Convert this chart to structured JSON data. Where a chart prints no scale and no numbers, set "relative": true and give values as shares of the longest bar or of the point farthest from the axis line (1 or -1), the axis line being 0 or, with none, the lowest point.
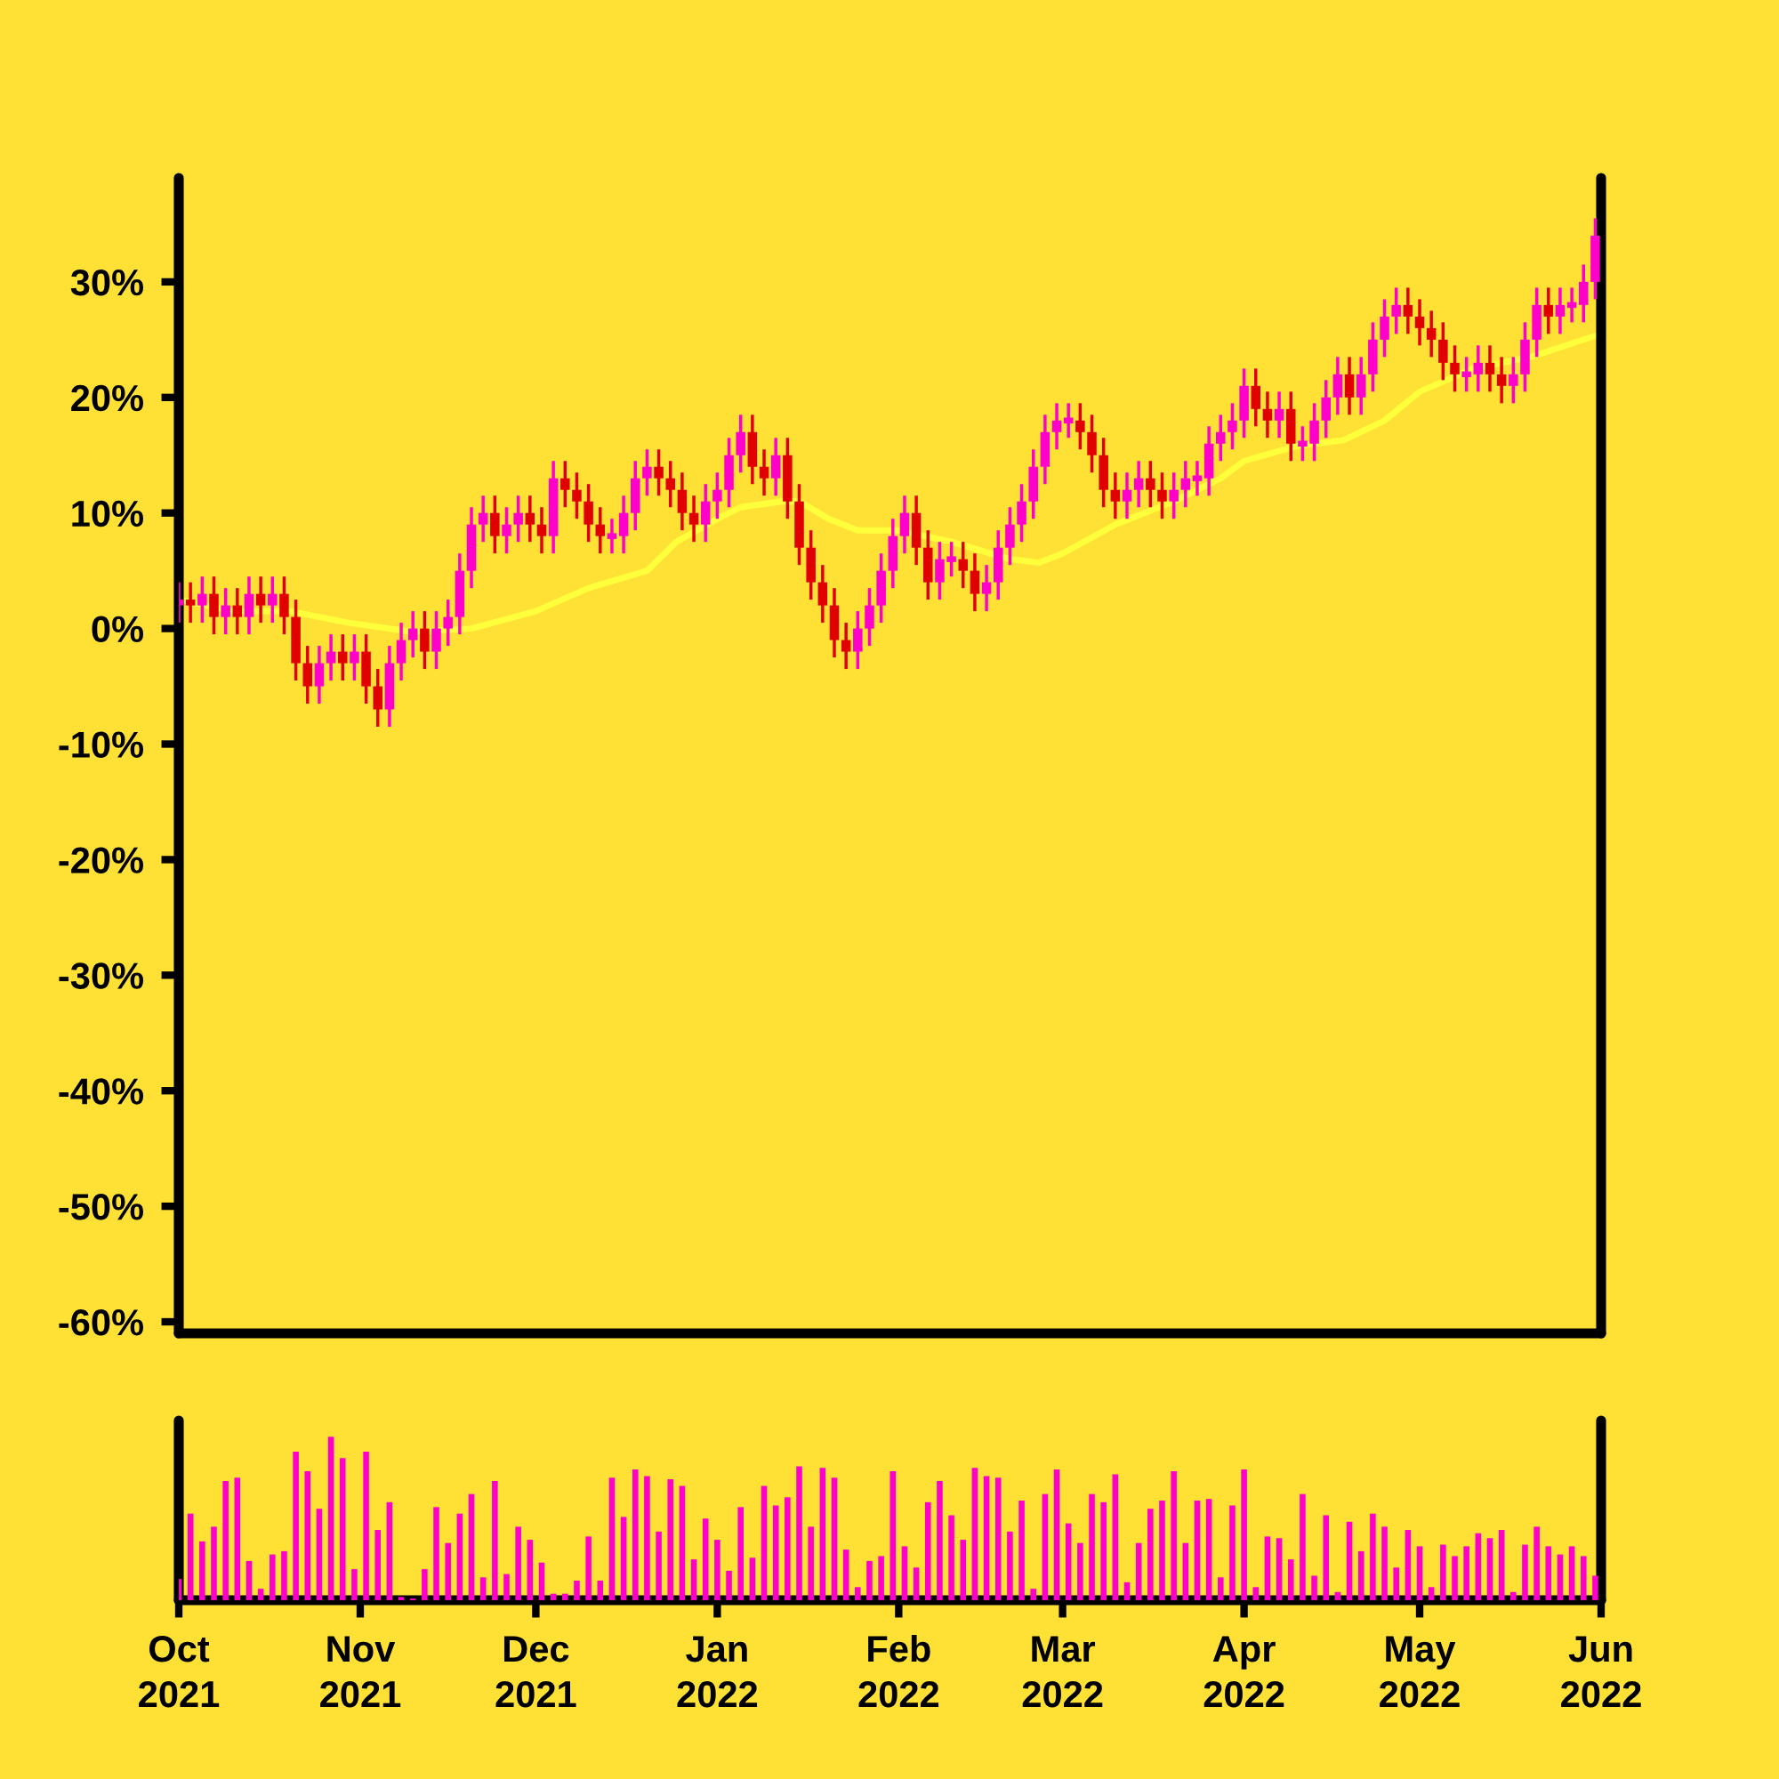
{
  "chart_data": [
    {
      "type": "candlestick",
      "xlim": [
        "2021-10-01",
        "2022-06-01"
      ],
      "ylim": [
        -61,
        39
      ],
      "yticks": [
        {
          "value": 30,
          "label": "30%"
        },
        {
          "value": 20,
          "label": "20%"
        },
        {
          "value": 10,
          "label": "10%"
        },
        {
          "value": 0,
          "label": "0%"
        },
        {
          "value": -10,
          "label": "-10%"
        },
        {
          "value": -20,
          "label": "-20%"
        },
        {
          "value": -30,
          "label": "-30%"
        },
        {
          "value": -40,
          "label": "-40%"
        },
        {
          "value": -50,
          "label": "-50%"
        },
        {
          "value": -60,
          "label": "-60%"
        }
      ],
      "tick_labels": "y",
      "grid": false,
      "x": [
        "2021-10-01",
        "2021-10-03",
        "2021-10-05",
        "2021-10-07",
        "2021-10-09",
        "2021-10-11",
        "2021-10-13",
        "2021-10-15",
        "2021-10-17",
        "2021-10-19",
        "2021-10-21",
        "2021-10-23",
        "2021-10-25",
        "2021-10-27",
        "2021-10-29",
        "2021-10-31",
        "2021-11-02",
        "2021-11-04",
        "2021-11-06",
        "2021-11-08",
        "2021-11-10",
        "2021-11-12",
        "2021-11-14",
        "2021-11-16",
        "2021-11-18",
        "2021-11-20",
        "2021-11-22",
        "2021-11-24",
        "2021-11-26",
        "2021-11-28",
        "2021-11-30",
        "2021-12-02",
        "2021-12-04",
        "2021-12-06",
        "2021-12-08",
        "2021-12-10",
        "2021-12-12",
        "2021-12-14",
        "2021-12-16",
        "2021-12-18",
        "2021-12-20",
        "2021-12-22",
        "2021-12-24",
        "2021-12-26",
        "2021-12-28",
        "2021-12-30",
        "2022-01-01",
        "2022-01-03",
        "2022-01-05",
        "2022-01-07",
        "2022-01-09",
        "2022-01-11",
        "2022-01-13",
        "2022-01-15",
        "2022-01-17",
        "2022-01-19",
        "2022-01-21",
        "2022-01-23",
        "2022-01-25",
        "2022-01-27",
        "2022-01-29",
        "2022-01-31",
        "2022-02-02",
        "2022-02-04",
        "2022-02-06",
        "2022-02-08",
        "2022-02-10",
        "2022-02-12",
        "2022-02-14",
        "2022-02-16",
        "2022-02-18",
        "2022-02-20",
        "2022-02-22",
        "2022-02-24",
        "2022-02-26",
        "2022-02-28",
        "2022-03-02",
        "2022-03-04",
        "2022-03-06",
        "2022-03-08",
        "2022-03-10",
        "2022-03-12",
        "2022-03-14",
        "2022-03-16",
        "2022-03-18",
        "2022-03-20",
        "2022-03-22",
        "2022-03-24",
        "2022-03-26",
        "2022-03-28",
        "2022-03-30",
        "2022-04-01",
        "2022-04-03",
        "2022-04-05",
        "2022-04-07",
        "2022-04-09",
        "2022-04-11",
        "2022-04-13",
        "2022-04-15",
        "2022-04-17",
        "2022-04-19",
        "2022-04-21",
        "2022-04-23",
        "2022-04-25",
        "2022-04-27",
        "2022-04-29",
        "2022-05-01",
        "2022-05-03",
        "2022-05-05",
        "2022-05-07",
        "2022-05-09",
        "2022-05-11",
        "2022-05-13",
        "2022-05-15",
        "2022-05-17",
        "2022-05-19",
        "2022-05-21",
        "2022-05-23",
        "2022-05-25",
        "2022-05-27",
        "2022-05-29",
        "2022-05-31"
      ],
      "ohlc": [
        [
          2,
          4,
          0.5,
          2.5
        ],
        [
          2.5,
          4,
          0.5,
          2
        ],
        [
          2,
          4.5,
          0.5,
          3
        ],
        [
          3,
          4.5,
          -0.5,
          1
        ],
        [
          1,
          3.5,
          -0.5,
          2
        ],
        [
          2,
          3.5,
          -0.5,
          1
        ],
        [
          1,
          4.5,
          -0.5,
          3
        ],
        [
          3,
          4.5,
          0.5,
          2
        ],
        [
          2,
          4.5,
          0.5,
          3
        ],
        [
          3,
          4.5,
          -0.5,
          1
        ],
        [
          1,
          2.5,
          -4.5,
          -3
        ],
        [
          -3,
          -1.5,
          -6.5,
          -5
        ],
        [
          -5,
          -1.5,
          -6.5,
          -3
        ],
        [
          -3,
          -0.5,
          -4.5,
          -2
        ],
        [
          -2,
          -0.5,
          -4.5,
          -3
        ],
        [
          -3,
          -0.5,
          -4.5,
          -2
        ],
        [
          -2,
          -0.5,
          -6.5,
          -5
        ],
        [
          -5,
          -3.5,
          -8.5,
          -7
        ],
        [
          -7,
          -1.5,
          -8.5,
          -3
        ],
        [
          -3,
          0.5,
          -4.5,
          -1
        ],
        [
          -1,
          1.5,
          -2.5,
          0
        ],
        [
          0,
          1.5,
          -3.5,
          -2
        ],
        [
          -2,
          1.5,
          -3.5,
          0
        ],
        [
          0,
          2.5,
          -1.5,
          1
        ],
        [
          1,
          6.5,
          -0.5,
          5
        ],
        [
          5,
          10.5,
          3.5,
          9
        ],
        [
          9,
          11.5,
          7.5,
          10
        ],
        [
          10,
          11.5,
          6.5,
          8
        ],
        [
          8,
          10.5,
          6.5,
          9
        ],
        [
          9,
          11.5,
          7.5,
          10
        ],
        [
          10,
          11.5,
          7.5,
          9
        ],
        [
          9,
          10.5,
          6.5,
          8
        ],
        [
          8,
          14.5,
          6.5,
          13
        ],
        [
          13,
          14.5,
          10.5,
          12
        ],
        [
          12,
          13.5,
          9.5,
          11
        ],
        [
          11,
          12.5,
          7.5,
          9
        ],
        [
          9,
          10.5,
          6.5,
          8
        ],
        [
          8,
          9.5,
          6.5,
          8
        ],
        [
          8,
          11.5,
          6.5,
          10
        ],
        [
          10,
          14.5,
          8.5,
          13
        ],
        [
          13,
          15.5,
          11.5,
          14
        ],
        [
          14,
          15.5,
          11.5,
          13
        ],
        [
          13,
          14.5,
          10.5,
          12
        ],
        [
          12,
          13.5,
          8.5,
          10
        ],
        [
          10,
          11.5,
          7.5,
          9
        ],
        [
          9,
          12.5,
          7.5,
          11
        ],
        [
          11,
          13.5,
          9.5,
          12
        ],
        [
          12,
          16.5,
          10.5,
          15
        ],
        [
          15,
          18.5,
          13.5,
          17
        ],
        [
          17,
          18.5,
          12.5,
          14
        ],
        [
          14,
          15.5,
          11.5,
          13
        ],
        [
          13,
          16.5,
          11.5,
          15
        ],
        [
          15,
          16.5,
          9.5,
          11
        ],
        [
          11,
          12.5,
          5.5,
          7
        ],
        [
          7,
          8.5,
          2.5,
          4
        ],
        [
          4,
          5.5,
          0.5,
          2
        ],
        [
          2,
          3.5,
          -2.5,
          -1
        ],
        [
          -1,
          0.5,
          -3.5,
          -2
        ],
        [
          -2,
          1.5,
          -3.5,
          0
        ],
        [
          0,
          3.5,
          -1.5,
          2
        ],
        [
          2,
          6.5,
          0.5,
          5
        ],
        [
          5,
          9.5,
          3.5,
          8
        ],
        [
          8,
          11.5,
          6.5,
          10
        ],
        [
          10,
          11.5,
          5.5,
          7
        ],
        [
          7,
          8.5,
          2.5,
          4
        ],
        [
          4,
          7.5,
          2.5,
          6
        ],
        [
          6,
          7.5,
          4.5,
          6
        ],
        [
          6,
          7.5,
          3.5,
          5
        ],
        [
          5,
          6.5,
          1.5,
          3
        ],
        [
          3,
          5.5,
          1.5,
          4
        ],
        [
          4,
          8.5,
          2.5,
          7
        ],
        [
          7,
          10.5,
          5.5,
          9
        ],
        [
          9,
          12.5,
          7.5,
          11
        ],
        [
          11,
          15.5,
          9.5,
          14
        ],
        [
          14,
          18.5,
          12.5,
          17
        ],
        [
          17,
          19.5,
          15.5,
          18
        ],
        [
          18,
          19.5,
          16.5,
          18
        ],
        [
          18,
          19.5,
          15.5,
          17
        ],
        [
          17,
          18.5,
          13.5,
          15
        ],
        [
          15,
          16.5,
          10.5,
          12
        ],
        [
          12,
          13.5,
          9.5,
          11
        ],
        [
          11,
          13.5,
          9.5,
          12
        ],
        [
          12,
          14.5,
          10.5,
          13
        ],
        [
          13,
          14.5,
          10.5,
          12
        ],
        [
          12,
          13.5,
          9.5,
          11
        ],
        [
          11,
          13.5,
          9.5,
          12
        ],
        [
          12,
          14.5,
          10.5,
          13
        ],
        [
          13,
          14.5,
          11.5,
          13
        ],
        [
          13,
          17.5,
          11.5,
          16
        ],
        [
          16,
          18.5,
          14.5,
          17
        ],
        [
          17,
          19.5,
          15.5,
          18
        ],
        [
          18,
          22.5,
          16.5,
          21
        ],
        [
          21,
          22.5,
          17.5,
          19
        ],
        [
          19,
          20.5,
          16.5,
          18
        ],
        [
          18,
          20.5,
          16.5,
          19
        ],
        [
          19,
          20.5,
          14.5,
          16
        ],
        [
          16,
          17.5,
          14.5,
          16
        ],
        [
          16,
          19.5,
          14.5,
          18
        ],
        [
          18,
          21.5,
          16.5,
          20
        ],
        [
          20,
          23.5,
          18.5,
          22
        ],
        [
          22,
          23.5,
          18.5,
          20
        ],
        [
          20,
          23.5,
          18.5,
          22
        ],
        [
          22,
          26.5,
          20.5,
          25
        ],
        [
          25,
          28.5,
          23.5,
          27
        ],
        [
          27,
          29.5,
          25.5,
          28
        ],
        [
          28,
          29.5,
          25.5,
          27
        ],
        [
          27,
          28.5,
          24.5,
          26
        ],
        [
          26,
          27.5,
          23.5,
          25
        ],
        [
          25,
          26.5,
          21.5,
          23
        ],
        [
          23,
          24.5,
          20.5,
          22
        ],
        [
          22,
          23.5,
          20.5,
          22
        ],
        [
          22,
          24.5,
          20.5,
          23
        ],
        [
          23,
          24.5,
          20.5,
          22
        ],
        [
          22,
          23.5,
          19.5,
          21
        ],
        [
          21,
          23.5,
          19.5,
          22
        ],
        [
          22,
          26.5,
          20.5,
          25
        ],
        [
          25,
          29.5,
          23.5,
          28
        ],
        [
          28,
          29.5,
          25.5,
          27
        ],
        [
          27,
          29.5,
          25.5,
          28
        ],
        [
          28,
          29.5,
          26.5,
          28
        ],
        [
          28,
          31.5,
          26.5,
          30
        ],
        [
          30,
          35.5,
          28.5,
          34
        ]
      ],
      "colors": [
        "#ff00cc",
        "#e00000",
        "#ff00cc",
        "#e00000",
        "#ff00cc",
        "#e00000",
        "#ff00cc",
        "#e00000",
        "#ff00cc",
        "#e00000",
        "#e00000",
        "#e00000",
        "#ff00cc",
        "#ff00cc",
        "#e00000",
        "#ff00cc",
        "#e00000",
        "#e00000",
        "#ff00cc",
        "#ff00cc",
        "#ff00cc",
        "#e00000",
        "#ff00cc",
        "#ff00cc",
        "#ff00cc",
        "#ff00cc",
        "#ff00cc",
        "#e00000",
        "#ff00cc",
        "#ff00cc",
        "#e00000",
        "#e00000",
        "#ff00cc",
        "#e00000",
        "#e00000",
        "#e00000",
        "#e00000",
        "#ff00cc",
        "#ff00cc",
        "#ff00cc",
        "#ff00cc",
        "#e00000",
        "#e00000",
        "#e00000",
        "#e00000",
        "#ff00cc",
        "#ff00cc",
        "#ff00cc",
        "#ff00cc",
        "#e00000",
        "#e00000",
        "#ff00cc",
        "#e00000",
        "#e00000",
        "#e00000",
        "#e00000",
        "#e00000",
        "#e00000",
        "#ff00cc",
        "#ff00cc",
        "#ff00cc",
        "#ff00cc",
        "#ff00cc",
        "#e00000",
        "#e00000",
        "#ff00cc",
        "#ff00cc",
        "#e00000",
        "#e00000",
        "#ff00cc",
        "#ff00cc",
        "#ff00cc",
        "#ff00cc",
        "#ff00cc",
        "#ff00cc",
        "#ff00cc",
        "#ff00cc",
        "#e00000",
        "#e00000",
        "#e00000",
        "#e00000",
        "#ff00cc",
        "#ff00cc",
        "#e00000",
        "#e00000",
        "#ff00cc",
        "#ff00cc",
        "#ff00cc",
        "#ff00cc",
        "#ff00cc",
        "#ff00cc",
        "#ff00cc",
        "#e00000",
        "#e00000",
        "#ff00cc",
        "#e00000",
        "#ff00cc",
        "#ff00cc",
        "#ff00cc",
        "#ff00cc",
        "#e00000",
        "#ff00cc",
        "#ff00cc",
        "#ff00cc",
        "#ff00cc",
        "#e00000",
        "#e00000",
        "#e00000",
        "#e00000",
        "#e00000",
        "#ff00cc",
        "#ff00cc",
        "#e00000",
        "#e00000",
        "#ff00cc",
        "#ff00cc",
        "#ff00cc",
        "#e00000",
        "#ff00cc",
        "#ff00cc",
        "#ff00cc",
        "#ff00cc"
      ],
      "series": [
        {
          "type": "line",
          "color": "#ffff3c",
          "line_style": "solid",
          "x": [
            "2021-10-01",
            "2021-10-10",
            "2021-10-20",
            "2021-10-30",
            "2021-11-10",
            "2021-11-20",
            "2021-12-01",
            "2021-12-10",
            "2021-12-20",
            "2021-12-25",
            "2022-01-01",
            "2022-01-05",
            "2022-01-12",
            "2022-01-15",
            "2022-01-20",
            "2022-01-25",
            "2022-02-01",
            "2022-02-10",
            "2022-02-20",
            "2022-02-25",
            "2022-03-01",
            "2022-03-10",
            "2022-03-20",
            "2022-03-28",
            "2022-04-01",
            "2022-04-10",
            "2022-04-18",
            "2022-04-25",
            "2022-05-01",
            "2022-05-10",
            "2022-05-20",
            "2022-06-01"
          ],
          "values": [
            2.5,
            1.5,
            1.5,
            0.5,
            -0.3,
            0,
            1.5,
            3.5,
            5,
            7.5,
            9.5,
            10.5,
            11,
            11,
            9.5,
            8.5,
            8.5,
            7.5,
            6,
            5.7,
            6.5,
            9,
            11,
            13,
            14.5,
            15.8,
            16.3,
            18,
            20.5,
            22.5,
            23.5,
            25.5
          ]
        }
      ]
    },
    {
      "type": "bar",
      "relative": true,
      "color": "#ff00cc",
      "tick_labels": "x",
      "grid": false,
      "xlim": [
        "2021-10-01",
        "2022-06-01"
      ],
      "xticks": [
        {
          "value": "2021-10-01",
          "label": "Oct\n2021"
        },
        {
          "value": "2021-11-01",
          "label": "Nov\n2021"
        },
        {
          "value": "2021-12-01",
          "label": "Dec\n2021"
        },
        {
          "value": "2022-01-01",
          "label": "Jan\n2022"
        },
        {
          "value": "2022-02-01",
          "label": "Feb\n2022"
        },
        {
          "value": "2022-03-01",
          "label": "Mar\n2022"
        },
        {
          "value": "2022-04-01",
          "label": "Apr\n2022"
        },
        {
          "value": "2022-05-01",
          "label": "May\n2022"
        },
        {
          "value": "2022-06-01",
          "label": "Jun\n2022"
        }
      ],
      "x": [
        "2021-10-01",
        "2021-10-03",
        "2021-10-05",
        "2021-10-07",
        "2021-10-09",
        "2021-10-11",
        "2021-10-13",
        "2021-10-15",
        "2021-10-17",
        "2021-10-19",
        "2021-10-21",
        "2021-10-23",
        "2021-10-25",
        "2021-10-27",
        "2021-10-29",
        "2021-10-31",
        "2021-11-02",
        "2021-11-04",
        "2021-11-06",
        "2021-11-08",
        "2021-11-10",
        "2021-11-12",
        "2021-11-14",
        "2021-11-16",
        "2021-11-18",
        "2021-11-20",
        "2021-11-22",
        "2021-11-24",
        "2021-11-26",
        "2021-11-28",
        "2021-11-30",
        "2021-12-02",
        "2021-12-04",
        "2021-12-06",
        "2021-12-08",
        "2021-12-10",
        "2021-12-12",
        "2021-12-14",
        "2021-12-16",
        "2021-12-18",
        "2021-12-20",
        "2021-12-22",
        "2021-12-24",
        "2021-12-26",
        "2021-12-28",
        "2021-12-30",
        "2022-01-01",
        "2022-01-03",
        "2022-01-05",
        "2022-01-07",
        "2022-01-09",
        "2022-01-11",
        "2022-01-13",
        "2022-01-15",
        "2022-01-17",
        "2022-01-19",
        "2022-01-21",
        "2022-01-23",
        "2022-01-25",
        "2022-01-27",
        "2022-01-29",
        "2022-01-31",
        "2022-02-02",
        "2022-02-04",
        "2022-02-06",
        "2022-02-08",
        "2022-02-10",
        "2022-02-12",
        "2022-02-14",
        "2022-02-16",
        "2022-02-18",
        "2022-02-20",
        "2022-02-22",
        "2022-02-24",
        "2022-02-26",
        "2022-02-28",
        "2022-03-02",
        "2022-03-04",
        "2022-03-06",
        "2022-03-08",
        "2022-03-10",
        "2022-03-12",
        "2022-03-14",
        "2022-03-16",
        "2022-03-18",
        "2022-03-20",
        "2022-03-22",
        "2022-03-24",
        "2022-03-26",
        "2022-03-28",
        "2022-03-30",
        "2022-04-01",
        "2022-04-03",
        "2022-04-05",
        "2022-04-07",
        "2022-04-09",
        "2022-04-11",
        "2022-04-13",
        "2022-04-15",
        "2022-04-17",
        "2022-04-19",
        "2022-04-21",
        "2022-04-23",
        "2022-04-25",
        "2022-04-27",
        "2022-04-29",
        "2022-05-01",
        "2022-05-03",
        "2022-05-05",
        "2022-05-07",
        "2022-05-09",
        "2022-05-11",
        "2022-05-13",
        "2022-05-15",
        "2022-05-17",
        "2022-05-19",
        "2022-05-21",
        "2022-05-23",
        "2022-05-25",
        "2022-05-27",
        "2022-05-29",
        "2022-05-31"
      ],
      "values": [
        0.13,
        0.53,
        0.36,
        0.45,
        0.73,
        0.75,
        0.24,
        0.07,
        0.28,
        0.3,
        0.91,
        0.79,
        0.56,
        1.0,
        0.87,
        0.19,
        0.91,
        0.43,
        0.6,
        0.02,
        0.01,
        0.19,
        0.57,
        0.35,
        0.53,
        0.65,
        0.14,
        0.73,
        0.16,
        0.45,
        0.37,
        0.23,
        0.04,
        0.04,
        0.12,
        0.39,
        0.12,
        0.75,
        0.51,
        0.8,
        0.76,
        0.42,
        0.74,
        0.7,
        0.25,
        0.5,
        0.37,
        0.18,
        0.57,
        0.26,
        0.7,
        0.58,
        0.63,
        0.82,
        0.45,
        0.81,
        0.75,
        0.31,
        0.08,
        0.24,
        0.27,
        0.79,
        0.33,
        0.2,
        0.6,
        0.73,
        0.52,
        0.37,
        0.81,
        0.76,
        0.75,
        0.42,
        0.61,
        0.07,
        0.65,
        0.8,
        0.47,
        0.35,
        0.65,
        0.6,
        0.77,
        0.11,
        0.35,
        0.56,
        0.61,
        0.79,
        0.35,
        0.61,
        0.62,
        0.14,
        0.58,
        0.8,
        0.08,
        0.39,
        0.38,
        0.25,
        0.65,
        0.15,
        0.52,
        0.05,
        0.48,
        0.3,
        0.53,
        0.45,
        0.2,
        0.43,
        0.33,
        0.08,
        0.34,
        0.27,
        0.33,
        0.41,
        0.38,
        0.43,
        0.05,
        0.34,
        0.45,
        0.33,
        0.28,
        0.33,
        0.27,
        0.15
      ]
    }
  ]
}
